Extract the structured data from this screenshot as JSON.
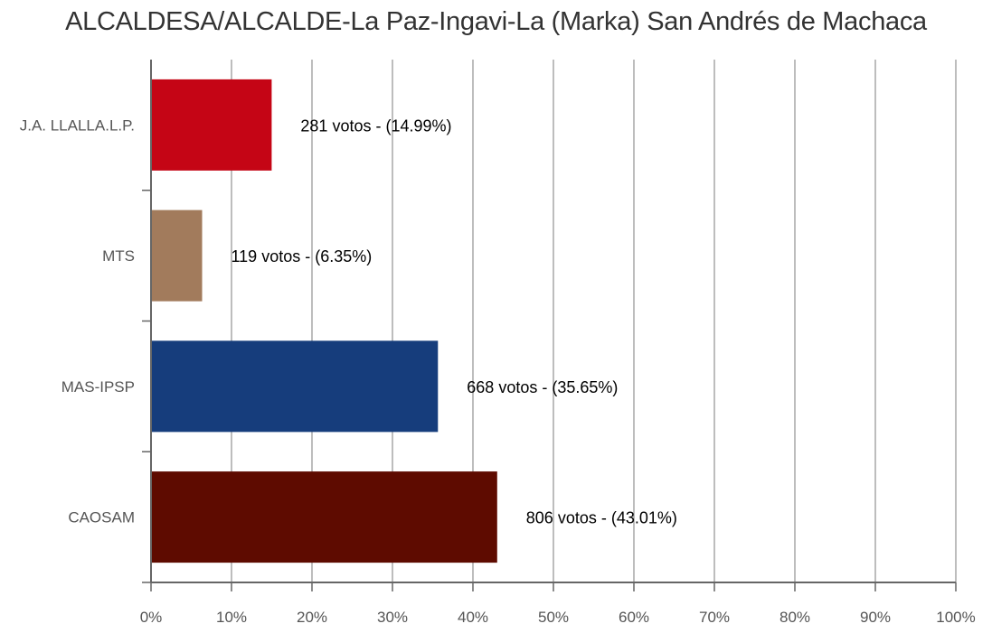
{
  "chart_data": {
    "type": "bar",
    "orientation": "horizontal",
    "title": "ALCALDESA/ALCALDE-La Paz-Ingavi-La (Marka) San Andrés de Machaca",
    "categories": [
      "J.A. LLALLA.L.P.",
      "MTS",
      "MAS-IPSP",
      "CAOSAM"
    ],
    "values": [
      14.99,
      6.35,
      35.65,
      43.01
    ],
    "votes": [
      281,
      119,
      668,
      806
    ],
    "data_labels": [
      "281 votos - (14.99%)",
      "119 votos - (6.35%)",
      "668 votos - (35.65%)",
      "806 votos - (43.01%)"
    ],
    "colors": [
      "#c50515",
      "#a27b5c",
      "#163d7c",
      "#5e0b00"
    ],
    "xlim": [
      0,
      100
    ],
    "xticks": [
      "0%",
      "10%",
      "20%",
      "30%",
      "40%",
      "50%",
      "60%",
      "70%",
      "80%",
      "90%",
      "100%"
    ],
    "grid": "vertical",
    "xlabel": "",
    "ylabel": ""
  }
}
